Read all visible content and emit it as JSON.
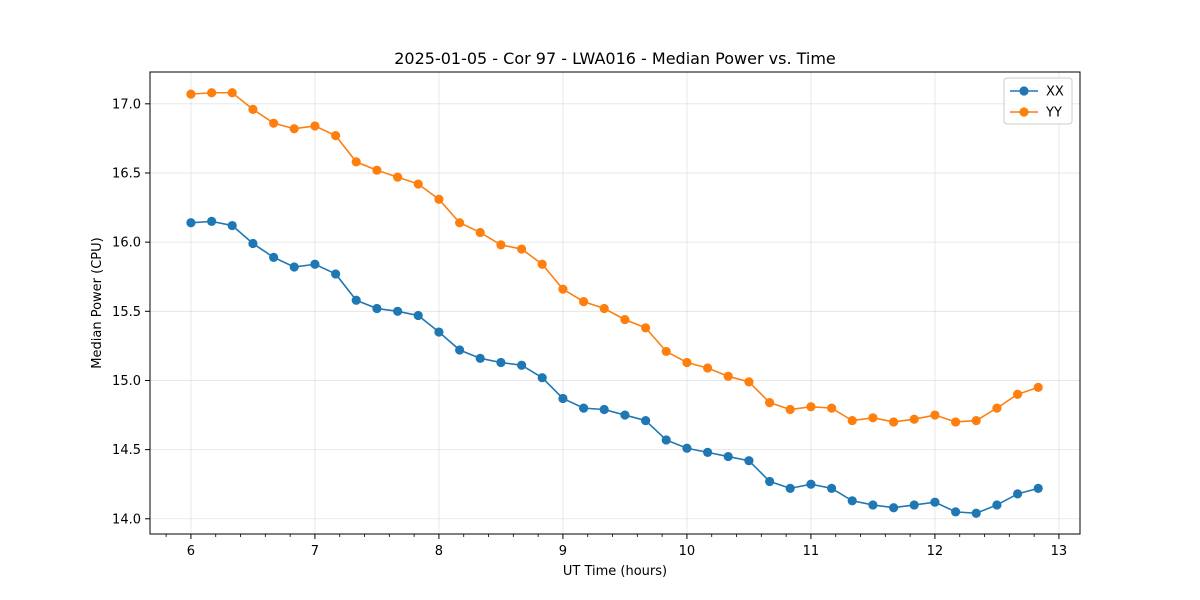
{
  "chart_data": {
    "type": "line",
    "title": "2025-01-05 - Cor 97 - LWA016 - Median Power vs. Time",
    "xlabel": "UT Time (hours)",
    "ylabel": "Median Power (CPU)",
    "xlim": [
      5.67,
      13.17
    ],
    "ylim": [
      13.89,
      17.23
    ],
    "x_ticks": [
      6,
      7,
      8,
      9,
      10,
      11,
      12,
      13
    ],
    "x_tick_labels": [
      "6",
      "7",
      "8",
      "9",
      "10",
      "11",
      "12",
      "13"
    ],
    "y_ticks": [
      14.0,
      14.5,
      15.0,
      15.5,
      16.0,
      16.5,
      17.0
    ],
    "y_tick_labels": [
      "14.0",
      "14.5",
      "15.0",
      "15.5",
      "16.0",
      "16.5",
      "17.0"
    ],
    "grid": true,
    "legend_position": "top-right",
    "x": [
      6.0,
      6.167,
      6.333,
      6.5,
      6.667,
      6.833,
      7.0,
      7.167,
      7.333,
      7.5,
      7.667,
      7.833,
      8.0,
      8.167,
      8.333,
      8.5,
      8.667,
      8.833,
      9.0,
      9.167,
      9.333,
      9.5,
      9.667,
      9.833,
      10.0,
      10.167,
      10.333,
      10.5,
      10.667,
      10.833,
      11.0,
      11.167,
      11.333,
      11.5,
      11.667,
      11.833,
      12.0,
      12.167,
      12.333,
      12.5,
      12.667,
      12.833
    ],
    "series": [
      {
        "name": "XX",
        "color": "#1f77b4",
        "values": [
          16.14,
          16.15,
          16.12,
          15.99,
          15.89,
          15.82,
          15.84,
          15.77,
          15.58,
          15.52,
          15.5,
          15.47,
          15.35,
          15.22,
          15.16,
          15.13,
          15.11,
          15.02,
          14.87,
          14.8,
          14.79,
          14.75,
          14.71,
          14.57,
          14.51,
          14.48,
          14.45,
          14.42,
          14.27,
          14.22,
          14.25,
          14.22,
          14.13,
          14.1,
          14.08,
          14.1,
          14.12,
          14.05,
          14.04,
          14.1,
          14.18,
          14.22
        ]
      },
      {
        "name": "YY",
        "color": "#ff7f0e",
        "values": [
          17.07,
          17.08,
          17.08,
          16.96,
          16.86,
          16.82,
          16.84,
          16.77,
          16.58,
          16.52,
          16.47,
          16.42,
          16.31,
          16.14,
          16.07,
          15.98,
          15.95,
          15.84,
          15.66,
          15.57,
          15.52,
          15.44,
          15.38,
          15.21,
          15.13,
          15.09,
          15.03,
          14.99,
          14.84,
          14.79,
          14.81,
          14.8,
          14.71,
          14.73,
          14.7,
          14.72,
          14.75,
          14.7,
          14.71,
          14.8,
          14.9,
          14.95
        ]
      }
    ]
  }
}
